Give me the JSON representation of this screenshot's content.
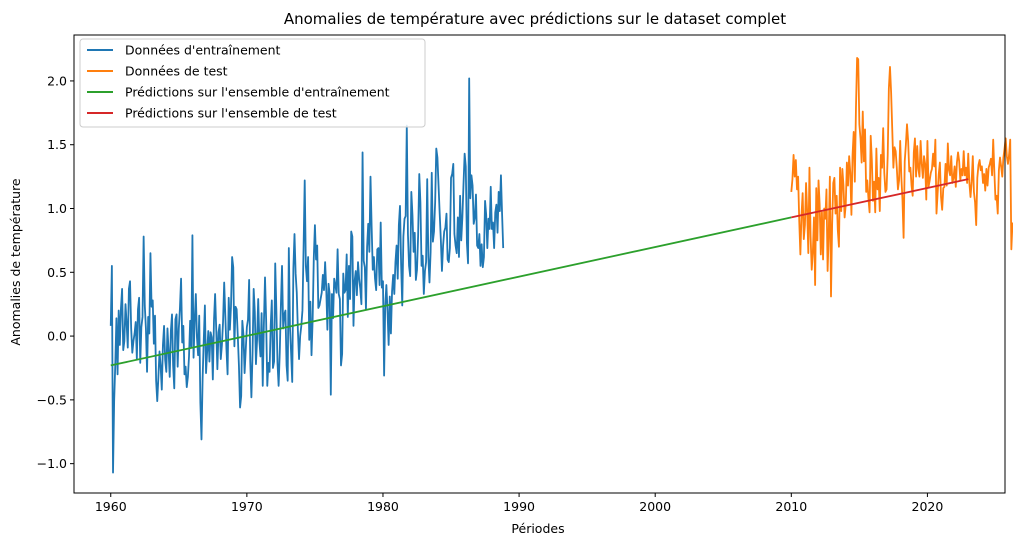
{
  "chart_data": {
    "type": "line",
    "title": "Anomalies de température avec prédictions sur le dataset complet",
    "xlabel": "Périodes",
    "ylabel": "Anomalies de température",
    "xlim": [
      1957.3,
      2025.7
    ],
    "ylim": [
      -1.23,
      2.36
    ],
    "xticks": [
      1960,
      1970,
      1980,
      1990,
      2000,
      2010,
      2020
    ],
    "yticks": [
      -1.0,
      -0.5,
      0.0,
      0.5,
      1.0,
      1.5,
      2.0
    ],
    "ytick_labels": [
      "−1.0",
      "−0.5",
      "0.0",
      "0.5",
      "1.0",
      "1.5",
      "2.0"
    ],
    "grid": false,
    "legend_position": "top-left",
    "series": [
      {
        "name": "Données d'entraînement",
        "color": "#1f77b4",
        "x_start": 1960.0,
        "x_step": 0.0833333,
        "values": [
          0.08,
          0.55,
          -1.07,
          -0.51,
          -0.22,
          0.14,
          -0.3,
          0.2,
          -0.07,
          0.22,
          0.37,
          -0.11,
          -0.04,
          0.25,
          0.1,
          -0.09,
          0.37,
          0.43,
          0.06,
          -0.13,
          -0.04,
          0.02,
          0.11,
          -0.18,
          0.21,
          0.3,
          -0.21,
          0.07,
          0.15,
          0.78,
          0.24,
          0.06,
          -0.28,
          0.15,
          0.02,
          0.65,
          0.23,
          0.28,
          -0.06,
          0.16,
          -0.35,
          -0.51,
          -0.32,
          -0.12,
          -0.24,
          -0.42,
          -0.07,
          0.08,
          -0.19,
          -0.28,
          0.06,
          -0.12,
          -0.32,
          0.04,
          0.17,
          -0.23,
          -0.41,
          0.13,
          0.17,
          -0.24,
          0.06,
          0.22,
          0.45,
          -0.05,
          0.08,
          -0.3,
          -0.24,
          -0.4,
          -0.32,
          -0.16,
          0.12,
          -0.09,
          0.79,
          -0.17,
          0.12,
          0.33,
          -0.01,
          -0.15,
          0.16,
          -0.52,
          -0.81,
          -0.33,
          -0.03,
          0.24,
          -0.29,
          -0.12,
          0.04,
          -0.2,
          0.03,
          -0.01,
          -0.34,
          0.12,
          0.33,
          0.05,
          -0.26,
          0.03,
          0.09,
          -0.18,
          -0.07,
          0.11,
          0.42,
          0.16,
          -0.1,
          -0.3,
          0.3,
          0.05,
          0.23,
          0.62,
          0.54,
          -0.08,
          0.23,
          0.21,
          0.0,
          -0.23,
          -0.56,
          -0.47,
          0.12,
          0.01,
          -0.29,
          -0.11,
          0.07,
          0.13,
          0.44,
          -0.2,
          -0.48,
          -0.14,
          0.37,
          0.19,
          -0.22,
          -0.03,
          0.29,
          -0.03,
          -0.16,
          0.18,
          -0.39,
          0.09,
          0.46,
          0.13,
          -0.39,
          -0.21,
          -0.28,
          0.08,
          0.28,
          -0.25,
          -0.2,
          0.57,
          0.21,
          -0.21,
          -0.39,
          -0.13,
          0.24,
          0.55,
          0.06,
          0.17,
          0.2,
          -0.23,
          -0.35,
          0.69,
          0.07,
          -0.13,
          -0.36,
          0.53,
          0.8,
          0.49,
          0.34,
          0.04,
          -0.18,
          0.0,
          0.08,
          0.2,
          0.69,
          1.22,
          0.55,
          0.43,
          0.62,
          -0.03,
          0.27,
          -0.15,
          0.13,
          0.61,
          0.87,
          0.6,
          0.71,
          0.22,
          0.24,
          0.29,
          0.34,
          0.48,
          0.36,
          0.58,
          0.37,
          0.05,
          0.41,
          0.33,
          -0.46,
          0.33,
          0.14,
          0.45,
          0.4,
          0.34,
          0.68,
          0.33,
          0.29,
          -0.23,
          -0.14,
          0.49,
          0.34,
          0.36,
          0.64,
          0.15,
          0.55,
          0.29,
          0.82,
          0.78,
          0.08,
          0.43,
          0.51,
          0.32,
          0.58,
          0.45,
          0.37,
          0.25,
          1.44,
          0.59,
          0.54,
          0.21,
          0.7,
          0.88,
          0.66,
          1.25,
          0.86,
          0.52,
          0.62,
          0.45,
          0.36,
          0.68,
          0.69,
          0.4,
          0.89,
          0.38,
          0.43,
          -0.31,
          0.24,
          0.4,
          0.2,
          -0.07,
          0.31,
          0.02,
          0.35,
          0.48,
          0.33,
          0.58,
          0.71,
          0.45,
          0.87,
          1.02,
          0.56,
          0.24,
          0.78,
          0.92,
          0.94,
          1.65,
          0.8,
          0.55,
          0.47,
          1.13,
          0.95,
          0.66,
          0.81,
          0.44,
          0.52,
          0.79,
          1.27,
          1.05,
          0.55,
          0.63,
          0.33,
          0.51,
          0.58,
          1.23,
          0.62,
          0.42,
          0.66,
          1.28,
          0.74,
          0.82,
          1.05,
          1.47,
          1.4,
          1.18,
          0.96,
          0.76,
          0.51,
          0.71,
          0.82,
          0.85,
          0.96,
          0.6,
          0.58,
          0.69,
          1.24,
          1.27,
          1.35,
          0.8,
          0.71,
          0.65,
          0.93,
          0.62,
          1.1,
          0.75,
          0.93,
          1.19,
          1.43,
          1.33,
          0.73,
          0.57,
          2.02,
          1.08,
          1.26,
          1.18,
          0.88,
          0.93,
          1.11,
          0.71,
          0.69,
          0.8,
          0.55,
          0.72,
          0.54,
          0.62,
          1.06,
          0.95,
          0.69,
          0.92,
          0.84,
          1.17,
          0.84,
          0.89,
          0.69,
          0.97,
          1.03,
          0.81,
          1.13,
          0.98,
          1.26,
          0.96,
          0.69
        ],
        "values_note": ""
      },
      {
        "name": "Données de test",
        "color": "#ff7f0e",
        "x_start": 2010.0,
        "x_step": 0.0833333,
        "values": [
          1.13,
          1.23,
          1.42,
          1.25,
          1.38,
          1.15,
          1.25,
          0.9,
          0.64,
          0.95,
          1.12,
          0.76,
          0.87,
          1.2,
          0.97,
          0.65,
          1.32,
          0.78,
          0.52,
          0.66,
          0.93,
          0.4,
          1.16,
          0.75,
          1.22,
          1.03,
          0.64,
          0.97,
          0.6,
          1.0,
          0.92,
          1.15,
          0.51,
          0.8,
          1.25,
          0.31,
          0.88,
          1.2,
          1.24,
          0.96,
          1.1,
          0.83,
          0.7,
          1.32,
          0.98,
          1.31,
          1.18,
          0.93,
          1.03,
          1.36,
          1.18,
          1.41,
          1.28,
          0.95,
          1.42,
          1.6,
          1.21,
          1.79,
          2.18,
          2.17,
          1.66,
          1.55,
          1.36,
          1.76,
          1.37,
          1.62,
          1.13,
          1.22,
          1.08,
          0.97,
          1.57,
          1.38,
          1.06,
          1.21,
          0.97,
          1.47,
          1.15,
          1.24,
          0.98,
          1.42,
          1.32,
          1.63,
          1.28,
          1.13,
          1.15,
          1.42,
          1.94,
          2.11,
          1.91,
          1.62,
          1.32,
          1.48,
          1.45,
          1.32,
          1.15,
          1.22,
          1.53,
          1.25,
          1.07,
          0.77,
          1.37,
          1.5,
          1.66,
          1.53,
          1.29,
          1.32,
          1.18,
          1.1,
          1.44,
          1.55,
          1.25,
          1.49,
          1.31,
          1.25,
          1.53,
          1.35,
          1.24,
          1.41,
          1.35,
          1.07,
          1.53,
          1.17,
          1.22,
          1.28,
          1.31,
          1.43,
          1.33,
          1.54,
          0.96,
          1.12,
          1.27,
          1.36,
          1.09,
          0.99,
          1.16,
          1.17,
          1.35,
          1.18,
          1.51,
          1.3,
          1.26,
          1.41,
          1.2,
          1.24,
          1.33,
          1.17,
          1.36,
          1.44,
          1.37,
          1.22,
          1.31,
          1.26,
          1.45,
          1.26,
          1.32,
          1.2,
          1.43,
          1.2,
          1.09,
          1.21,
          1.41,
          1.13,
          1.05,
          0.87,
          1.24,
          1.34,
          1.38,
          1.3,
          1.33,
          1.2,
          1.27,
          1.14,
          1.31,
          1.18,
          1.32,
          1.35,
          1.39,
          1.26,
          1.54,
          1.29,
          1.07,
          1.1,
          0.96,
          1.3,
          1.4,
          1.33,
          1.25,
          1.4,
          1.47,
          1.55,
          1.41,
          1.35,
          1.42,
          1.54,
          0.68,
          0.89
        ],
        "values_note": ""
      },
      {
        "name": "Prédictions sur l'ensemble d'entraînement",
        "color": "#2ca02c",
        "x": [
          1960.0,
          2010.0
        ],
        "values": [
          -0.23,
          0.93
        ]
      },
      {
        "name": "Prédictions sur l'ensemble de test",
        "color": "#d62728",
        "x": [
          2010.0,
          2023.0
        ],
        "values": [
          0.93,
          1.23
        ]
      }
    ]
  }
}
